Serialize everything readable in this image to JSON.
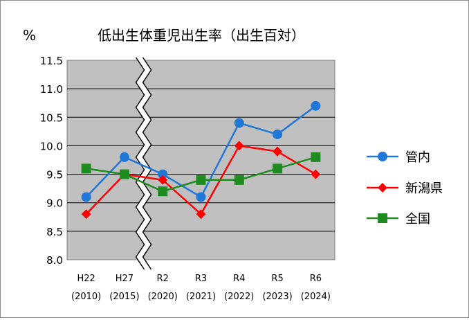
{
  "chart_data": {
    "type": "line",
    "title": "低出生体重児出生率（出生百対）",
    "ylabel": "%",
    "xlabel": "",
    "ylim": [
      8.0,
      11.5
    ],
    "yticks": [
      "11.5",
      "11.0",
      "10.5",
      "10.0",
      "9.5",
      "9.0",
      "8.5",
      "8.0"
    ],
    "categories": [
      [
        "H22",
        "(2010)"
      ],
      [
        "H27",
        "(2015)"
      ],
      [
        "R2",
        "(2020)"
      ],
      [
        "R3",
        "(2021)"
      ],
      [
        "R4",
        "(2022)"
      ],
      [
        "R5",
        "(2023)"
      ],
      [
        "R6",
        "(2024)"
      ]
    ],
    "axis_break": "between H27 and R2",
    "grid": true,
    "plot_background": "#c0c0c0",
    "legend_placement": "right",
    "series": [
      {
        "name": "管内",
        "values": [
          9.1,
          9.8,
          9.5,
          9.1,
          10.4,
          10.2,
          10.7
        ],
        "color": "#1f77d8",
        "marker": "circle"
      },
      {
        "name": "新潟県",
        "values": [
          8.8,
          9.5,
          9.4,
          8.8,
          10.0,
          9.9,
          9.5
        ],
        "color": "#ff0000",
        "marker": "diamond"
      },
      {
        "name": "全国",
        "values": [
          9.6,
          9.5,
          9.2,
          9.4,
          9.4,
          9.6,
          9.8
        ],
        "color": "#1e8c1e",
        "marker": "square"
      }
    ]
  }
}
